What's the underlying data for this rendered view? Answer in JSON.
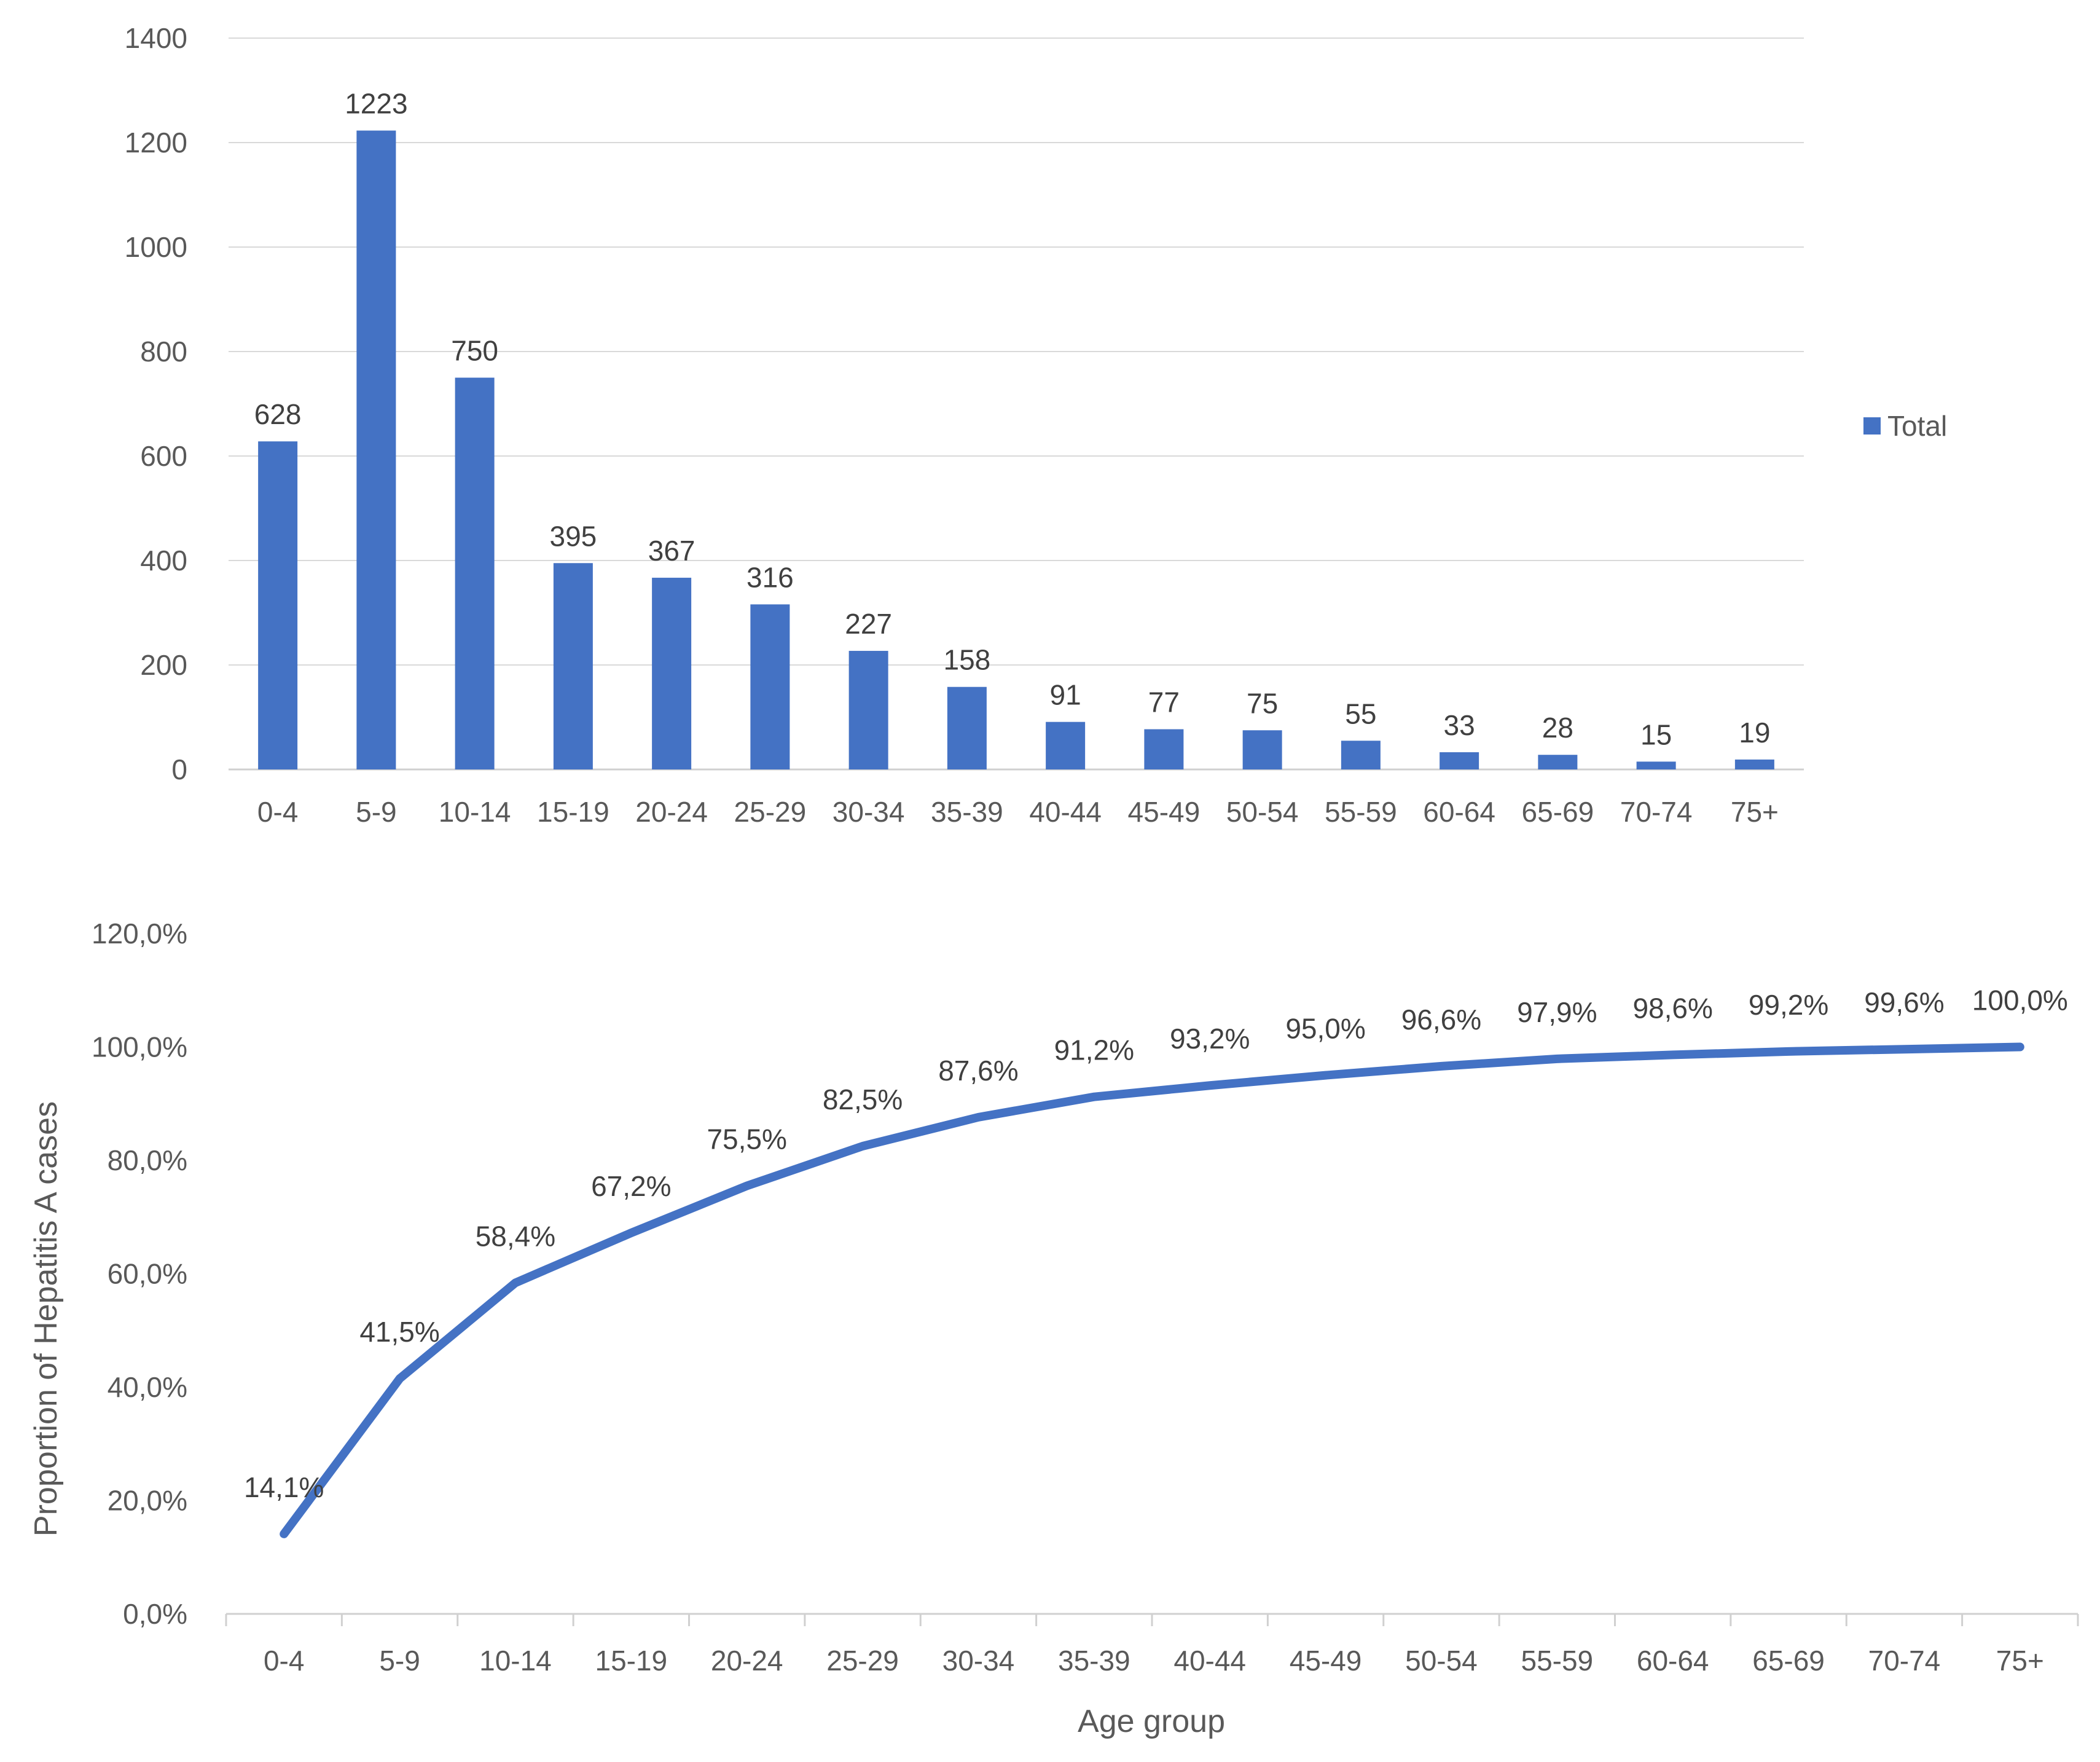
{
  "chart_data": [
    {
      "type": "bar",
      "categories": [
        "0-4",
        "5-9",
        "10-14",
        "15-19",
        "20-24",
        "25-29",
        "30-34",
        "35-39",
        "40-44",
        "45-49",
        "50-54",
        "55-59",
        "60-64",
        "65-69",
        "70-74",
        "75+"
      ],
      "series": [
        {
          "name": "Total",
          "values": [
            628,
            1223,
            750,
            395,
            367,
            316,
            227,
            158,
            91,
            77,
            75,
            55,
            33,
            28,
            15,
            19
          ]
        }
      ],
      "data_labels": [
        "628",
        "1223",
        "750",
        "395",
        "367",
        "316",
        "227",
        "158",
        "91",
        "77",
        "75",
        "55",
        "33",
        "28",
        "15",
        "19"
      ],
      "y_ticks": [
        "0",
        "200",
        "400",
        "600",
        "800",
        "1000",
        "1200",
        "1400"
      ],
      "ylim": [
        0,
        1400
      ],
      "grid": true,
      "legend": "right",
      "color": "#4472C4"
    },
    {
      "type": "line",
      "categories": [
        "0-4",
        "5-9",
        "10-14",
        "15-19",
        "20-24",
        "25-29",
        "30-34",
        "35-39",
        "40-44",
        "45-49",
        "50-54",
        "55-59",
        "60-64",
        "65-69",
        "70-74",
        "75+"
      ],
      "series": [
        {
          "values": [
            14.1,
            41.5,
            58.4,
            67.2,
            75.5,
            82.5,
            87.6,
            91.2,
            93.2,
            95.0,
            96.6,
            97.9,
            98.6,
            99.2,
            99.6,
            100.0
          ]
        }
      ],
      "data_labels": [
        "14,1%",
        "41,5%",
        "58,4%",
        "67,2%",
        "75,5%",
        "82,5%",
        "87,6%",
        "91,2%",
        "93,2%",
        "95,0%",
        "96,6%",
        "97,9%",
        "98,6%",
        "99,2%",
        "99,6%",
        "100,0%"
      ],
      "y_ticks": [
        "0,0%",
        "20,0%",
        "40,0%",
        "60,0%",
        "80,0%",
        "100,0%",
        "120,0%"
      ],
      "ylim": [
        0,
        120
      ],
      "xlabel": "Age group",
      "ylabel": "Proportion of Hepatitis A cases",
      "grid": false,
      "color": "#4472C4"
    }
  ]
}
